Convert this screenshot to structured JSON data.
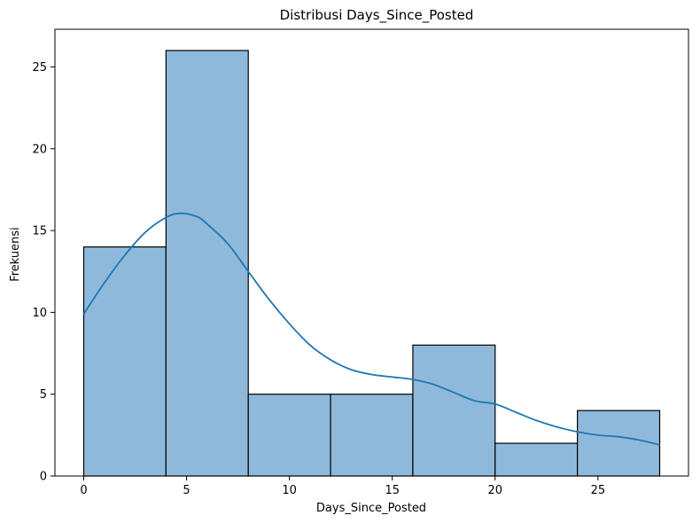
{
  "chart_data": {
    "type": "bar",
    "title": "Distribusi Days_Since_Posted",
    "xlabel": "Days_Since_Posted",
    "ylabel": "Frekuensi",
    "bins": [
      {
        "start": 0,
        "end": 4,
        "count": 14
      },
      {
        "start": 4,
        "end": 8,
        "count": 26
      },
      {
        "start": 8,
        "end": 12,
        "count": 5
      },
      {
        "start": 12,
        "end": 16,
        "count": 5
      },
      {
        "start": 16,
        "end": 20,
        "count": 8
      },
      {
        "start": 20,
        "end": 24,
        "count": 2
      },
      {
        "start": 24,
        "end": 28,
        "count": 4
      }
    ],
    "kde": {
      "x": [
        0,
        1,
        2,
        3,
        4,
        4.7,
        5.5,
        6,
        7,
        8,
        9,
        10,
        11,
        12,
        13,
        14,
        15,
        16,
        17,
        18,
        19,
        20,
        21,
        22,
        23,
        24,
        25,
        26,
        27,
        28
      ],
      "y": [
        9.9,
        11.8,
        13.5,
        14.9,
        15.8,
        16.05,
        15.85,
        15.4,
        14.2,
        12.5,
        10.8,
        9.3,
        8.0,
        7.1,
        6.5,
        6.2,
        6.05,
        5.9,
        5.6,
        5.1,
        4.6,
        4.4,
        3.9,
        3.4,
        3.0,
        2.7,
        2.5,
        2.4,
        2.2,
        1.9
      ]
    },
    "xticks": [
      0,
      5,
      10,
      15,
      20,
      25
    ],
    "yticks": [
      0,
      5,
      10,
      15,
      20,
      25
    ],
    "xlim": [
      -1.4,
      29.4
    ],
    "ylim": [
      0,
      27.3
    ],
    "grid": false,
    "bar_color": "#8fb9da",
    "bar_edge_color": "#000000",
    "kde_color": "#1f77b4"
  }
}
